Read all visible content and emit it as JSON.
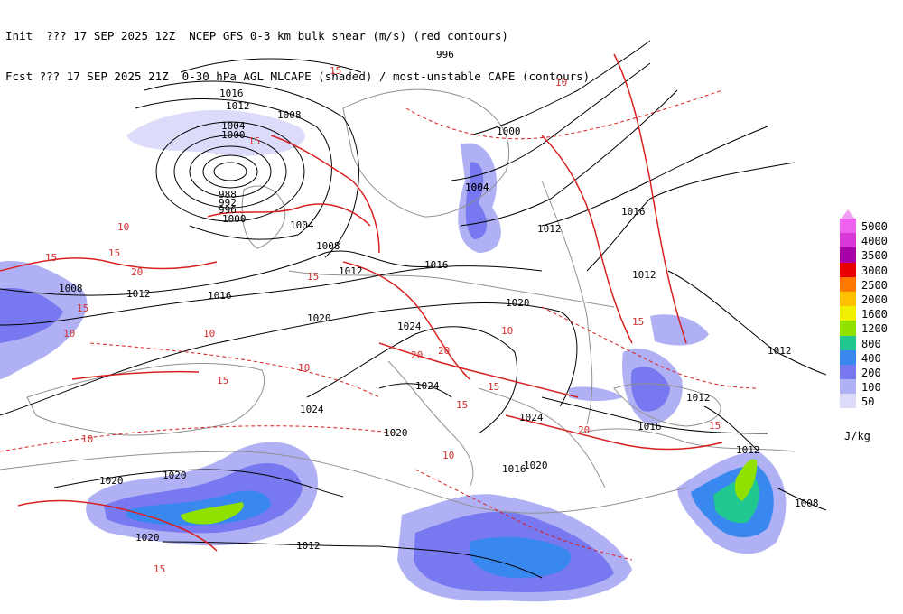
{
  "header": {
    "line1": "Init  ??? 17 SEP 2025 12Z  NCEP GFS 0-3 km bulk shear (m/s) (red contours)",
    "line2": "Fcst ??? 17 SEP 2025 21Z  0-30 hPa AGL MLCAPE (shaded) / most-unstable CAPE (contours)"
  },
  "legend": {
    "units": "J/kg",
    "items": [
      {
        "label": "5000",
        "color": "#ee60ee"
      },
      {
        "label": "4000",
        "color": "#d838d8"
      },
      {
        "label": "3500",
        "color": "#a800a8"
      },
      {
        "label": "3000",
        "color": "#e80000"
      },
      {
        "label": "2500",
        "color": "#ff7800"
      },
      {
        "label": "2000",
        "color": "#ffc000"
      },
      {
        "label": "1600",
        "color": "#f0f000"
      },
      {
        "label": "1200",
        "color": "#90e000"
      },
      {
        "label": "800",
        "color": "#20c890"
      },
      {
        "label": "400",
        "color": "#3888f0"
      },
      {
        "label": "200",
        "color": "#7878f0"
      },
      {
        "label": "100",
        "color": "#b0b0f4"
      },
      {
        "label": "50",
        "color": "#dcdcfa"
      }
    ]
  },
  "pressure_labels": [
    "1016",
    "1012",
    "1008",
    "1004",
    "1000",
    "996",
    "992",
    "988",
    "1004",
    "1000",
    "1004",
    "1008",
    "1012",
    "1016",
    "1020",
    "1024",
    "1024",
    "1024",
    "1020",
    "1020",
    "1020",
    "1020",
    "1012",
    "1008",
    "1004",
    "1000",
    "996",
    "1012",
    "1016",
    "1012",
    "1012",
    "1016",
    "1020",
    "1024",
    "1012",
    "1016",
    "1012",
    "1008",
    "1020",
    "1016",
    "1012"
  ],
  "shear_labels": [
    "15",
    "15",
    "10",
    "20",
    "15",
    "15",
    "10",
    "15",
    "20",
    "10",
    "10",
    "15",
    "20",
    "15",
    "10",
    "10",
    "15",
    "20",
    "15",
    "10",
    "15",
    "15",
    "15",
    "10"
  ]
}
